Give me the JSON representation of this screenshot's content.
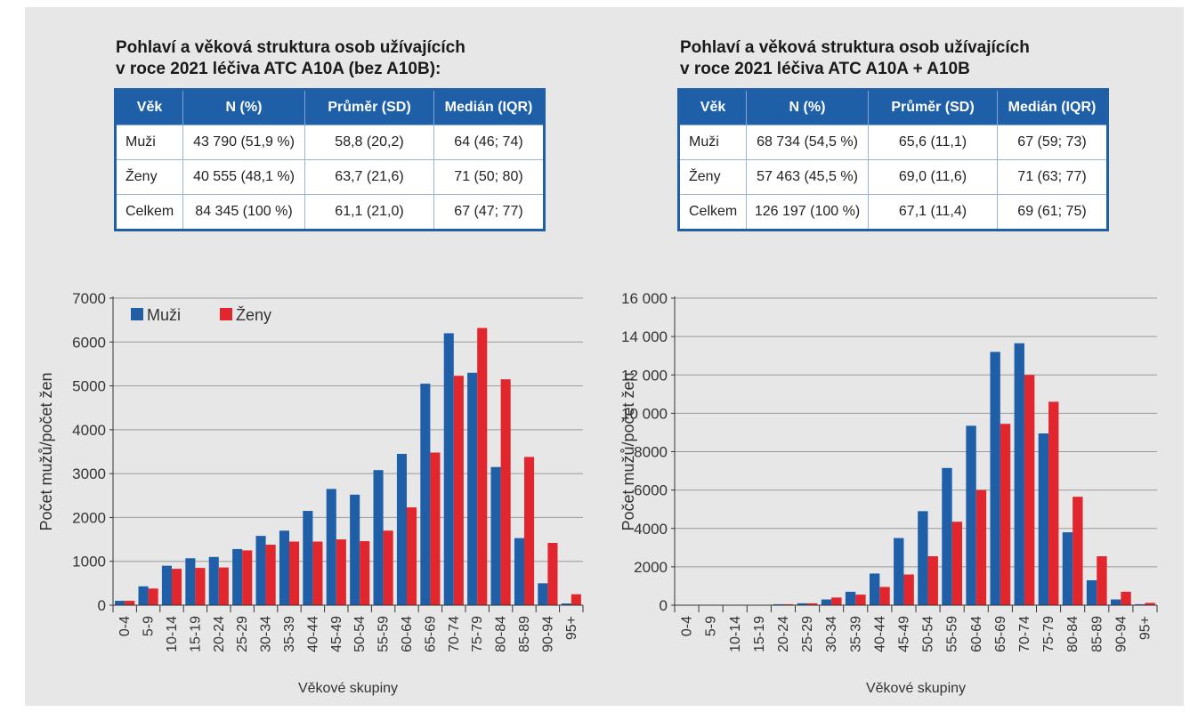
{
  "colors": {
    "men": "#1f5fa8",
    "women": "#e1262d",
    "header": "#1f5fa8"
  },
  "panels": [
    {
      "title_lines": [
        "Pohlaví a věková struktura osob užívajících",
        "v roce 2021 léčiva ATC A10A (bez A10B):"
      ],
      "table": {
        "headers": [
          "Věk",
          "N (%)",
          "Průměr (SD)",
          "Medián (IQR)"
        ],
        "rows": [
          [
            "Muži",
            "43 790 (51,9 %)",
            "58,8 (20,2)",
            "64 (46; 74)"
          ],
          [
            "Ženy",
            "40 555 (48,1 %)",
            "63,7 (21,6)",
            "71 (50; 80)"
          ],
          [
            "Celkem",
            "84 345 (100 %)",
            "61,1 (21,0)",
            "67 (47; 77)"
          ]
        ]
      }
    },
    {
      "title_lines": [
        "Pohlaví a věková struktura osob užívajících",
        "v roce 2021 léčiva ATC A10A + A10B"
      ],
      "table": {
        "headers": [
          "Věk",
          "N (%)",
          "Průměr (SD)",
          "Medián (IQR)"
        ],
        "rows": [
          [
            "Muži",
            "68 734 (54,5 %)",
            "65,6 (11,1)",
            "67 (59; 73)"
          ],
          [
            "Ženy",
            "57 463 (45,5 %)",
            "69,0 (11,6)",
            "71 (63; 77)"
          ],
          [
            "Celkem",
            "126 197 (100 %)",
            "67,1 (11,4)",
            "69 (61; 75)"
          ]
        ]
      }
    }
  ],
  "chart_data": [
    {
      "type": "bar",
      "categories": [
        "0-4",
        "5-9",
        "10-14",
        "15-19",
        "20-24",
        "25-29",
        "30-34",
        "35-39",
        "40-44",
        "45-49",
        "50-54",
        "55-59",
        "60-64",
        "65-69",
        "70-74",
        "75-79",
        "80-84",
        "85-89",
        "90-94",
        "95+"
      ],
      "series": [
        {
          "name": "Muži",
          "values": [
            100,
            430,
            900,
            1070,
            1100,
            1280,
            1580,
            1700,
            2150,
            2650,
            2520,
            3080,
            3450,
            5050,
            6200,
            5300,
            3150,
            1530,
            500,
            40
          ]
        },
        {
          "name": "Ženy",
          "values": [
            100,
            380,
            830,
            850,
            860,
            1250,
            1380,
            1450,
            1450,
            1500,
            1460,
            1700,
            2230,
            3480,
            5230,
            6320,
            5150,
            3380,
            1420,
            250
          ]
        }
      ],
      "title": "",
      "xlabel": "Věkové skupiny",
      "ylabel": "Počet mužů/počet žen",
      "ylim": [
        0,
        7000
      ],
      "yticks": [
        "0",
        "1000",
        "2000",
        "3000",
        "4000",
        "5000",
        "6000",
        "7000"
      ],
      "grid": true,
      "legend": "top-left"
    },
    {
      "type": "bar",
      "categories": [
        "0-4",
        "5-9",
        "10-14",
        "15-19",
        "20-24",
        "25-29",
        "30-34",
        "35-39",
        "40-44",
        "45-49",
        "50-54",
        "55-59",
        "60-64",
        "65-69",
        "70-74",
        "75-79",
        "80-84",
        "85-89",
        "90-94",
        "95+"
      ],
      "series": [
        {
          "name": "Muži",
          "values": [
            0,
            0,
            0,
            0,
            50,
            100,
            300,
            700,
            1650,
            3500,
            4900,
            7150,
            9350,
            13200,
            13650,
            8950,
            3800,
            1300,
            300,
            50
          ]
        },
        {
          "name": "Ženy",
          "values": [
            0,
            0,
            0,
            0,
            50,
            100,
            400,
            550,
            950,
            1600,
            2550,
            4350,
            6000,
            9450,
            12000,
            10600,
            5650,
            2550,
            700,
            120
          ]
        }
      ],
      "title": "",
      "xlabel": "Věkové skupiny",
      "ylabel": "Počet mužů/počet žen",
      "ylim": [
        0,
        16000
      ],
      "yticks": [
        "0",
        "2000",
        "4000",
        "6000",
        "8000",
        "10 000",
        "12 000",
        "14 000",
        "16 000"
      ],
      "grid": true,
      "legend": ""
    }
  ]
}
